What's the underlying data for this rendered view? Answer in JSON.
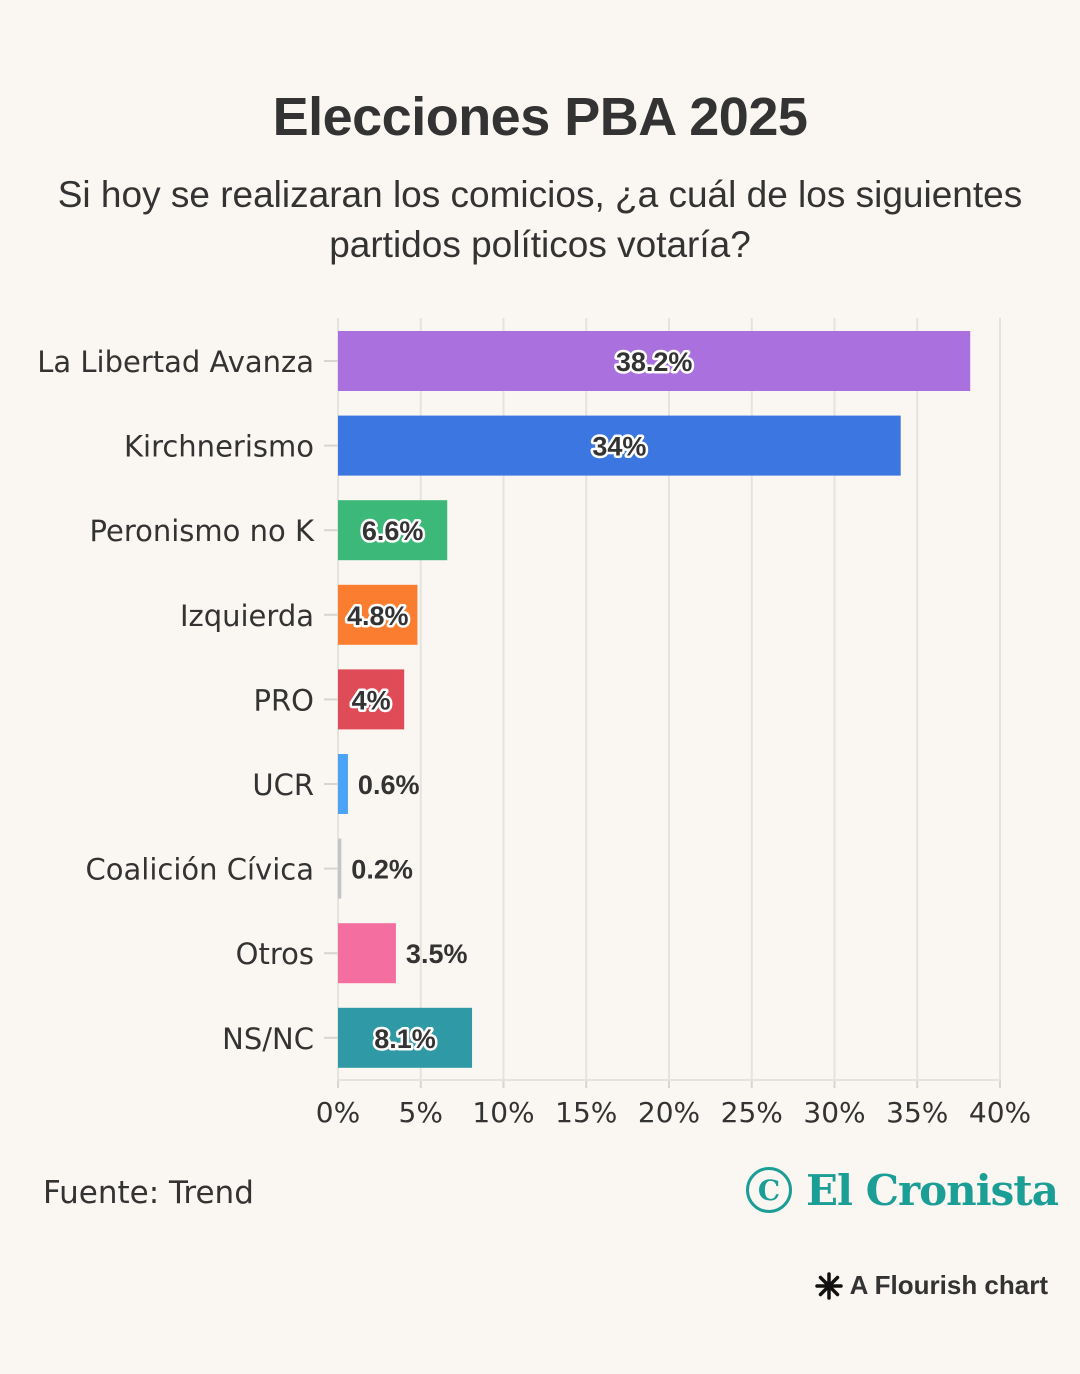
{
  "title": "Elecciones PBA 2025",
  "subtitle": "Si hoy se realizaran los comicios, ¿a cuál de los siguientes partidos políticos votaría?",
  "source": "Fuente: Trend",
  "logo_text": "El Cronista",
  "logo_mark": "C",
  "flourish_label": "A Flourish chart",
  "chart_data": {
    "type": "bar",
    "orientation": "horizontal",
    "categories": [
      "La Libertad Avanza",
      "Kirchnerismo",
      "Peronismo no K",
      "Izquierda",
      "PRO",
      "UCR",
      "Coalición Cívica",
      "Otros",
      "NS/NC"
    ],
    "values": [
      38.2,
      34,
      6.6,
      4.8,
      4,
      0.6,
      0.2,
      3.5,
      8.1
    ],
    "value_labels": [
      "38.2%",
      "34%",
      "6.6%",
      "4.8%",
      "4%",
      "0.6%",
      "0.2%",
      "3.5%",
      "8.1%"
    ],
    "colors": [
      "#a970de",
      "#3b76e1",
      "#3cb878",
      "#fb7e30",
      "#e04b58",
      "#4aa3f5",
      "#c2c6cc",
      "#f46fa0",
      "#2f9aa6"
    ],
    "xlim": [
      0,
      40
    ],
    "xticks": [
      0,
      5,
      10,
      15,
      20,
      25,
      30,
      35,
      40
    ],
    "xtick_labels": [
      "0%",
      "5%",
      "10%",
      "15%",
      "20%",
      "25%",
      "30%",
      "35%",
      "40%"
    ],
    "grid": true,
    "legend": "none"
  }
}
